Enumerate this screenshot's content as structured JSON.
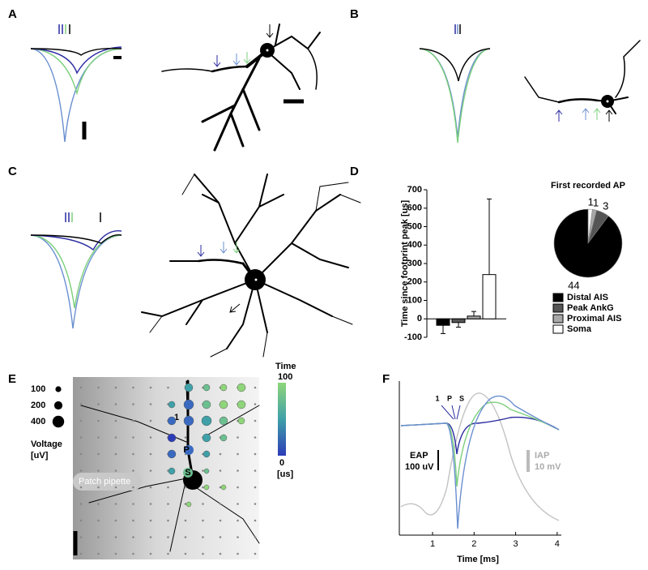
{
  "panel_labels": [
    "A",
    "B",
    "C",
    "D",
    "E",
    "F"
  ],
  "panel_e": {
    "size_legend": [
      100,
      200,
      400
    ],
    "size_title": "Voltage",
    "size_unit": "[uV]",
    "colorbar_title": "Time",
    "colorbar_ticks": [
      100,
      0
    ],
    "colorbar_unit": "[us]",
    "pipette_label": "Patch pipette",
    "annotations": [
      "1",
      "P",
      "S"
    ]
  },
  "chart_data": [
    {
      "type": "bar",
      "ylabel": "Time since footprint peak [us]",
      "categories": [
        "Distal AIS",
        "Peak AnkG",
        "Proximal AIS",
        "Soma"
      ],
      "values": [
        -35,
        -20,
        15,
        240
      ],
      "errors": [
        45,
        25,
        25,
        410
      ],
      "colors": [
        "#000000",
        "#555555",
        "#a8a8a8",
        "#ffffff"
      ],
      "ylim": [
        -100,
        700
      ],
      "yticks": [
        -100,
        0,
        100,
        200,
        300,
        400,
        500,
        600,
        700
      ]
    },
    {
      "type": "pie",
      "title": "First recorded AP",
      "values": [
        1,
        1,
        3,
        44
      ],
      "colors": [
        "#ffffff",
        "#a8a8a8",
        "#555555",
        "#000000"
      ]
    },
    {
      "type": "line",
      "xlabel": "Time [ms]",
      "xlim": [
        0.2,
        4.1
      ],
      "xticks": [
        1,
        2,
        3,
        4
      ],
      "annotations": [
        "1",
        "P",
        "S"
      ],
      "eap_label": "EAP",
      "eap_scale": "100 uV",
      "iap_label": "IAP",
      "iap_scale": "10 mV"
    }
  ]
}
